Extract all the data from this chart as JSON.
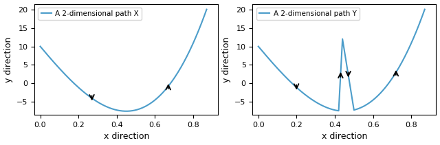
{
  "title_left": "A 2-dimensional path X",
  "title_right": "A 2-dimensional path Y",
  "xlabel": "x direction",
  "ylabel": "y direction",
  "xlim": [
    -0.03,
    0.93
  ],
  "ylim": [
    -8.5,
    21.5
  ],
  "line_color": "#4c9dca",
  "line_width": 1.5,
  "figsize": [
    6.4,
    2.11
  ],
  "dpi": 100,
  "yticks": [
    -5,
    0,
    5,
    10,
    15,
    20
  ],
  "xticks": [
    0.0,
    0.2,
    0.4,
    0.6,
    0.8
  ]
}
